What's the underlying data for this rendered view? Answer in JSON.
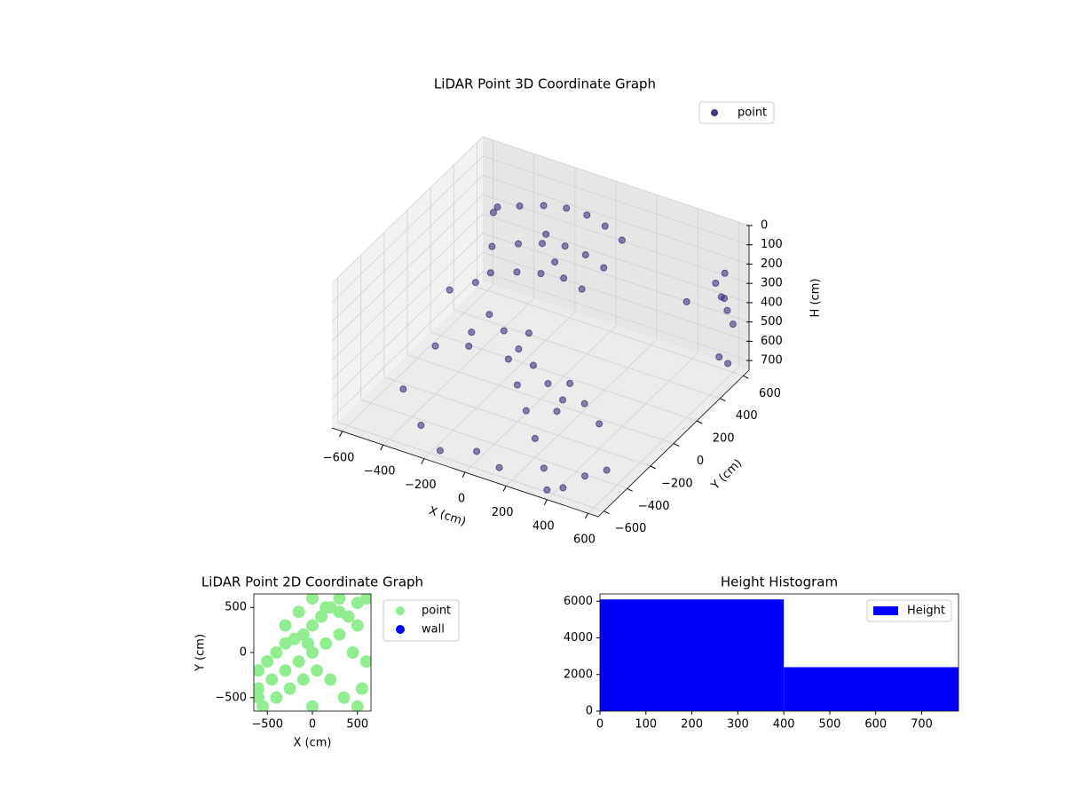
{
  "chart_data": [
    {
      "type": "scatter3d",
      "title": "LiDAR Point 3D Coordinate Graph",
      "xlabel": "X (cm)",
      "ylabel": "Y (cm)",
      "zlabel": "H (cm)",
      "xlim": [
        -650,
        650
      ],
      "ylim": [
        -650,
        650
      ],
      "zlim": [
        750,
        0
      ],
      "xticks": [
        {
          "value": -600,
          "label": "−600"
        },
        {
          "value": -400,
          "label": "−400"
        },
        {
          "value": -200,
          "label": "−200"
        },
        0,
        200,
        400,
        600
      ],
      "yticks": [
        {
          "value": -600,
          "label": "−600"
        },
        {
          "value": -400,
          "label": "−400"
        },
        {
          "value": -200,
          "label": "−200"
        },
        0,
        200,
        400,
        600
      ],
      "zticks": [
        0,
        100,
        200,
        300,
        400,
        500,
        600,
        700
      ],
      "legend": "upper right",
      "grid": true,
      "series": [
        {
          "name": "point",
          "color": "#46327e",
          "x": [
            -400,
            -300,
            -200,
            -100,
            0,
            100,
            200,
            -350,
            -250,
            -150,
            -50,
            50,
            150,
            -300,
            -200,
            -100,
            0,
            100,
            -250,
            -150,
            -50,
            50,
            150,
            250,
            -100,
            0,
            100,
            200,
            300,
            400,
            600,
            600,
            600,
            600,
            600,
            620,
            580,
            560,
            -600,
            -500,
            -450,
            -300,
            -150,
            0,
            150,
            300,
            450,
            550,
            -550,
            -400,
            -200,
            0,
            200,
            400,
            600,
            -500,
            -350,
            -100,
            250,
            500
          ],
          "y": [
            300,
            350,
            380,
            400,
            400,
            380,
            350,
            200,
            250,
            280,
            300,
            300,
            280,
            100,
            150,
            180,
            200,
            180,
            0,
            -50,
            -100,
            -150,
            -200,
            -250,
            -100,
            -200,
            -300,
            -100,
            -150,
            -200,
            450,
            500,
            550,
            600,
            480,
            520,
            560,
            600,
            500,
            -300,
            200,
            -500,
            -600,
            -550,
            -620,
            -500,
            -600,
            -400,
            600,
            -200,
            400,
            -100,
            -400,
            -650,
            200,
            100,
            0,
            300,
            -300,
            -500
          ],
          "values": [
            100,
            60,
            40,
            30,
            30,
            40,
            60,
            200,
            180,
            160,
            150,
            160,
            180,
            260,
            250,
            240,
            240,
            250,
            400,
            420,
            450,
            470,
            500,
            520,
            520,
            560,
            600,
            540,
            580,
            620,
            200,
            300,
            400,
            500,
            600,
            650,
            350,
            250,
            650,
            700,
            680,
            700,
            720,
            700,
            690,
            710,
            700,
            690,
            300,
            500,
            200,
            350,
            650,
            700,
            150,
            420,
            600,
            250,
            550,
            680
          ]
        }
      ]
    },
    {
      "type": "scatter",
      "title": "LiDAR Point 2D Coordinate Graph",
      "xlabel": "X (cm)",
      "ylabel": "Y (cm)",
      "xlim": [
        -650,
        650
      ],
      "ylim": [
        -650,
        650
      ],
      "xticks": [
        {
          "value": -500,
          "label": "−500"
        },
        0,
        500
      ],
      "yticks": [
        {
          "value": -500,
          "label": "−500"
        },
        0,
        500
      ],
      "legend": "outside right",
      "series": [
        {
          "name": "point",
          "color": "#90ee90",
          "x": [
            -600,
            -500,
            -400,
            -300,
            -200,
            -100,
            0,
            100,
            200,
            300,
            400,
            500,
            600,
            -600,
            -450,
            -300,
            -150,
            0,
            150,
            300,
            450,
            600,
            -550,
            -400,
            -250,
            -100,
            50,
            200,
            350,
            500,
            -300,
            -150,
            0,
            150,
            300,
            0,
            -50,
            500,
            550,
            -600
          ],
          "values": [
            -200,
            -100,
            0,
            100,
            150,
            200,
            300,
            400,
            500,
            450,
            400,
            550,
            600,
            -400,
            -300,
            -200,
            -100,
            0,
            100,
            200,
            0,
            -100,
            -600,
            -500,
            -400,
            -300,
            -200,
            -300,
            -500,
            -600,
            300,
            450,
            600,
            500,
            600,
            -600,
            100,
            300,
            -400,
            -500
          ]
        },
        {
          "name": "wall",
          "color": "#0000ff",
          "x": [],
          "values": []
        }
      ]
    },
    {
      "type": "histogram",
      "title": "Height Histogram",
      "bins": [
        0,
        400,
        780
      ],
      "xlim": [
        0,
        780
      ],
      "ylim": [
        0,
        6400
      ],
      "xticks": [
        0,
        100,
        200,
        300,
        400,
        500,
        600,
        700
      ],
      "yticks": [
        0,
        2000,
        4000,
        6000
      ],
      "legend": "upper right",
      "series": [
        {
          "name": "Height",
          "color": "#0000ff",
          "values": [
            6100,
            2400
          ]
        }
      ]
    }
  ]
}
